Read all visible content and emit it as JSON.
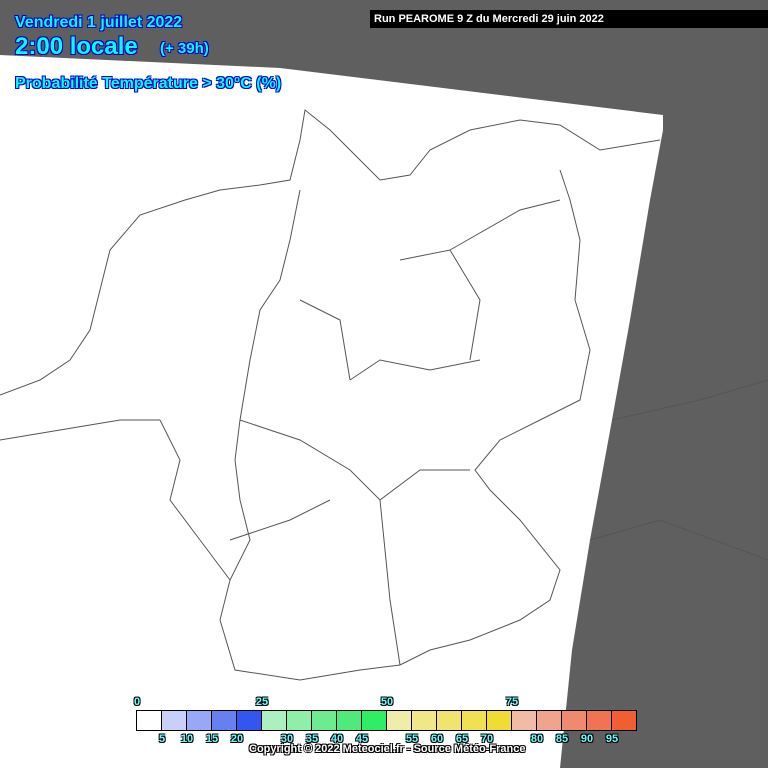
{
  "header": {
    "date": "Vendredi 1 juillet 2022",
    "time": "2:00 locale",
    "lead": "(+ 39h)",
    "parameter": "Probabilité Température > 30°C (%)",
    "run": "Run PEAROME 9 Z du Mercredi 29 juin 2022"
  },
  "legend": {
    "colors": [
      "#ffffff",
      "#c8d0fa",
      "#98a8f6",
      "#6680f2",
      "#3356f0",
      "#aaf0c0",
      "#8ef0a8",
      "#6cec8e",
      "#4eea7a",
      "#30ee64",
      "#f0ecaa",
      "#f0e888",
      "#f0e46e",
      "#f0e054",
      "#f0dc32",
      "#f0bca8",
      "#f0a48c",
      "#f08a6e",
      "#f07452",
      "#f05e32"
    ],
    "top_labels": [
      "0",
      "25",
      "50",
      "75"
    ],
    "bottom_labels": [
      "5",
      "10",
      "15",
      "20",
      "30",
      "35",
      "40",
      "45",
      "55",
      "60",
      "65",
      "70",
      "80",
      "85",
      "90",
      "95"
    ]
  },
  "copyright": "Copyright © 2022 Meteociel.fr - Source Météo-France",
  "map": {
    "domain_color": "#ffffff",
    "outside_color": "#5f5f5f",
    "border_color": "#555555"
  }
}
